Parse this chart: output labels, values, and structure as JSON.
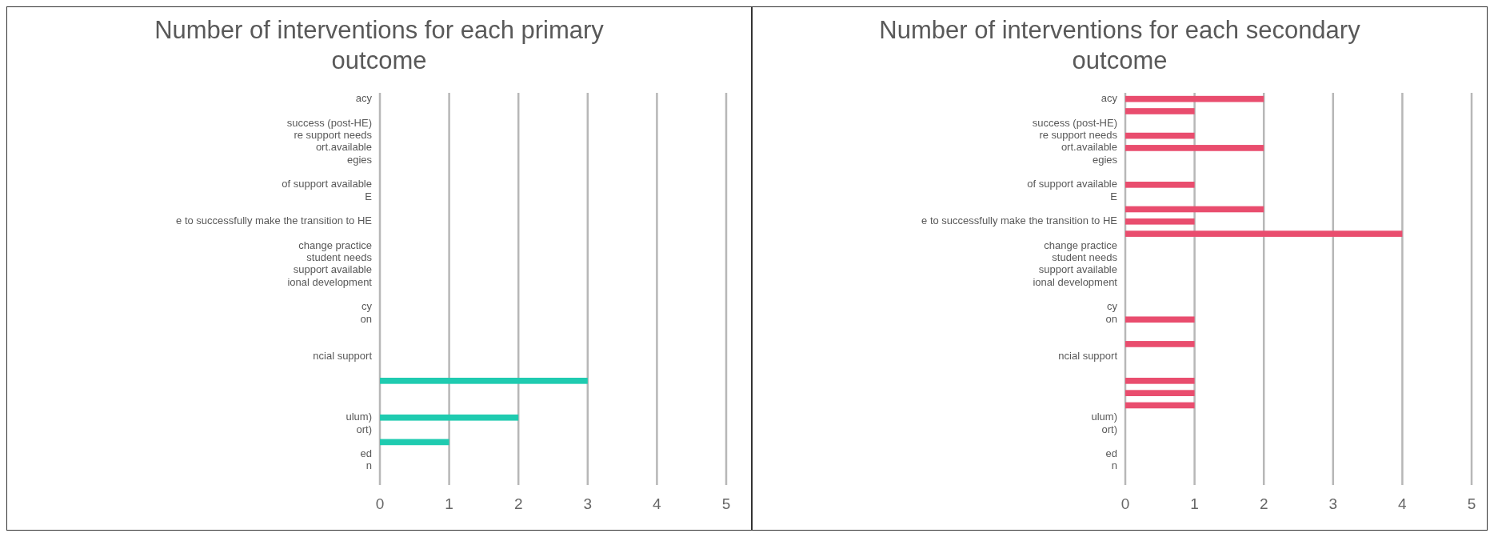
{
  "chart_data": [
    {
      "type": "bar",
      "orientation": "horizontal",
      "title": "Number of interventions for each primary outcome",
      "categories": [
        "acy",
        null,
        "success (post-HE)",
        "re support needs",
        "ort.available",
        "egies",
        null,
        "of support available",
        "E",
        null,
        "e to successfully make the transition to HE",
        null,
        "change practice",
        "student needs",
        "support available",
        "ional development",
        null,
        "cy",
        "on",
        null,
        null,
        "ncial support",
        null,
        null,
        null,
        null,
        "ulum)",
        "ort)",
        null,
        "ed",
        "n",
        null
      ],
      "series": [
        {
          "color": "#1fcbb0",
          "values": [
            0,
            0,
            0,
            0,
            0,
            0,
            0,
            0,
            0,
            0,
            0,
            0,
            0,
            0,
            0,
            0,
            0,
            0,
            0,
            0,
            0,
            0,
            0,
            3,
            0,
            0,
            2,
            0,
            1,
            0,
            0,
            0
          ]
        }
      ],
      "xlim": [
        0,
        5
      ],
      "xticks": [
        0,
        1,
        2,
        3,
        4,
        5
      ],
      "grid": "x"
    },
    {
      "type": "bar",
      "orientation": "horizontal",
      "title": "Number of interventions for each secondary outcome",
      "categories": [
        "acy",
        null,
        "success (post-HE)",
        "re support needs",
        "ort.available",
        "egies",
        null,
        "of support available",
        "E",
        null,
        "e to successfully make the transition to HE",
        null,
        "change practice",
        "student needs",
        "support available",
        "ional development",
        null,
        "cy",
        "on",
        null,
        null,
        "ncial support",
        null,
        null,
        null,
        null,
        "ulum)",
        "ort)",
        null,
        "ed",
        "n",
        null
      ],
      "series": [
        {
          "color": "#e94d6e",
          "values": [
            2,
            1,
            0,
            1,
            2,
            0,
            0,
            1,
            0,
            2,
            1,
            4,
            0,
            0,
            0,
            0,
            0,
            0,
            1,
            0,
            1,
            0,
            0,
            1,
            1,
            1,
            0,
            0,
            0,
            0,
            0,
            0
          ]
        }
      ],
      "xlim": [
        0,
        5
      ],
      "xticks": [
        0,
        1,
        2,
        3,
        4,
        5
      ],
      "grid": "x"
    }
  ]
}
